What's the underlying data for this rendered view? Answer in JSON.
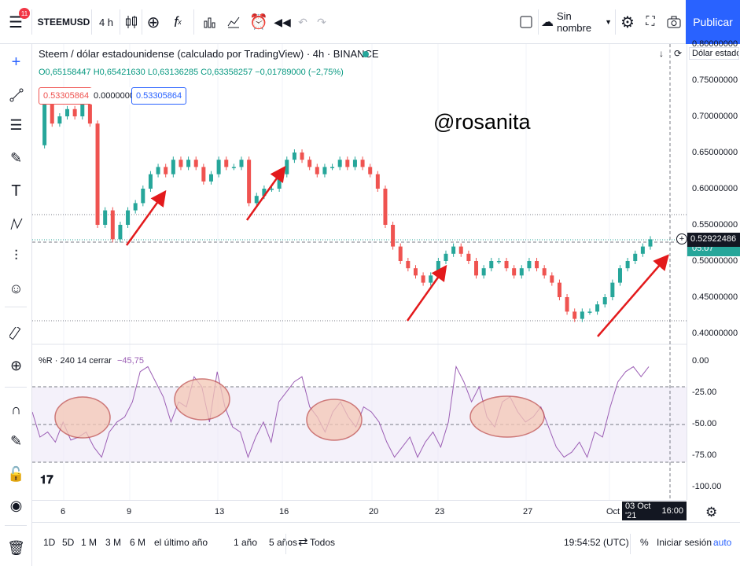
{
  "header": {
    "badge": "11",
    "symbol": "STEEMUSD",
    "interval": "4 h",
    "fx_icon": "f",
    "fx_sub": "x",
    "template": "Sin nombre",
    "publish": "Publicar"
  },
  "legend": {
    "title": "Steem / dólar estadounidense (calculado por TradingView) · 4h · BINANCE",
    "ohlc": "O0,65158447 H0,65421630 L0,63136285 C0,63358257 −0,01789000 (−2,75%)",
    "sell_price": "0.53305864",
    "spread": "0.00000000",
    "buy_price": "0.53305864",
    "watermark": "@rosanita",
    "currency_label": "Dólar estadou"
  },
  "price_axis": {
    "labels": [
      "0.80000000",
      "0.75000000",
      "0.70000000",
      "0.65000000",
      "0.60000000",
      "0.55000000",
      "0.50000000",
      "0.45000000",
      "0.40000000"
    ],
    "current": "0.52922486",
    "countdown": "05:07"
  },
  "rsi": {
    "label": "%R · 240 14 cerrar",
    "value": "−45,75",
    "axis": [
      "0.00",
      "-25.00",
      "-50.00",
      "-75.00",
      "-100.00"
    ]
  },
  "time_axis": {
    "labels": [
      "6",
      "9",
      "13",
      "16",
      "20",
      "23",
      "27",
      "Oct"
    ],
    "cursor": "03 Oct '21",
    "cursor_time": "16:00"
  },
  "bottom": {
    "ranges": [
      "1D",
      "5D",
      "1 M",
      "3 M",
      "6 M",
      "el último año",
      "1 año",
      "5 años",
      "Todos"
    ],
    "clock": "19:54:52 (UTC)",
    "percent": "%",
    "login": "Iniciar sesión",
    "auto": "auto"
  },
  "colors": {
    "up": "#26a69a",
    "down": "#ef5350",
    "accent": "#2962ff",
    "rsi": "#9c5fb5"
  }
}
